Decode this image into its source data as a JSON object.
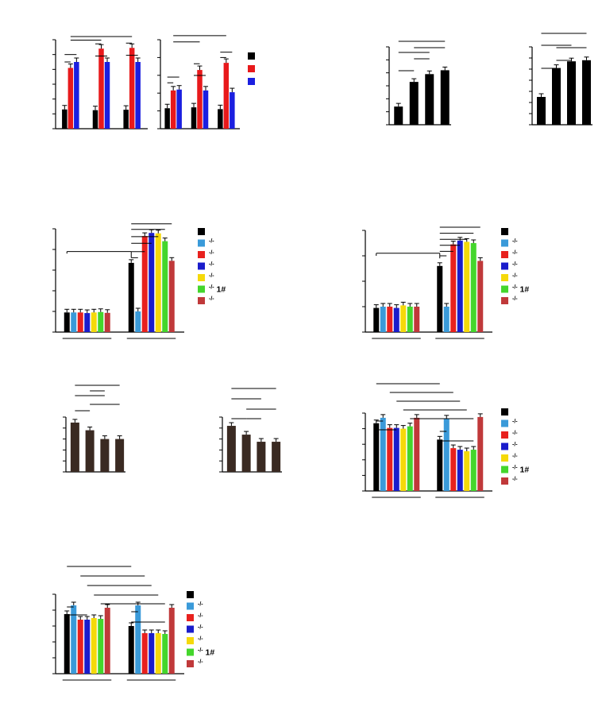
{
  "figure": {
    "colors": {
      "black": "#000000",
      "red": "#e8191b",
      "blue": "#1b1fe0",
      "skyblue": "#3a9ad9",
      "nlrp3": "#e8211e",
      "asc": "#1a1ccb",
      "yellow": "#f5d90a",
      "green": "#44d62c",
      "brick": "#c0393a",
      "dark": "#3a2a22"
    }
  },
  "chart_data": [
    {
      "id": "A",
      "type": "bar",
      "panel_label": "A",
      "title": "3D4/21",
      "ylabel": "IFN-β (pg/ml)",
      "ylim": [
        0,
        600
      ],
      "yticks": [
        0,
        100,
        200,
        300,
        400,
        500,
        600
      ],
      "categories": [
        "WT",
        "p65-/- 1#",
        "p65-/- 2#"
      ],
      "series": [
        {
          "name": "Vehicle",
          "values": [
            130,
            125,
            128
          ]
        },
        {
          "name": "G10 (20 µM)",
          "values": [
            410,
            540,
            545
          ]
        },
        {
          "name": "LPS (1 µg/ml)",
          "values": [
            450,
            450,
            450
          ]
        }
      ],
      "annotations": [
        "***",
        "***",
        "***",
        "***",
        "***",
        "***",
        "**",
        "**"
      ]
    },
    {
      "id": "A2",
      "type": "bar",
      "title": "PK15",
      "ylabel": "",
      "ylim": [
        0,
        500
      ],
      "yticks": [
        0,
        100,
        200,
        300,
        400,
        500
      ],
      "categories": [
        "WT",
        "p65-/- 1#",
        "p65-/- 2#"
      ],
      "series": [
        {
          "name": "Vehicle",
          "values": [
            115,
            120,
            110
          ]
        },
        {
          "name": "G10 (20 µM)",
          "values": [
            215,
            330,
            370
          ]
        },
        {
          "name": "LPS (1 µg/ml)",
          "values": [
            220,
            215,
            205
          ]
        }
      ],
      "legend": [
        "Vehicle",
        "G10 (20 μM)",
        "LPS (1 μg/ml)"
      ],
      "annotations": [
        "***",
        "***",
        "***",
        "***",
        "***",
        "***",
        "**",
        "**"
      ]
    },
    {
      "id": "B",
      "type": "bar",
      "panel_label": "B",
      "title": "3D4/21",
      "ylabel": "IFN-β (pg/ml)",
      "ylim": [
        0,
        600
      ],
      "yticks": [
        0,
        100,
        200,
        300,
        400,
        500,
        600
      ],
      "values": [
        140,
        330,
        390,
        420
      ],
      "rows": [
        {
          "label": "G10",
          "signs": [
            "-",
            "+",
            "+",
            "+"
          ]
        },
        {
          "label": "MCC950",
          "signs": [
            "-",
            "-",
            "+",
            "-"
          ]
        },
        {
          "label": "VX765",
          "signs": [
            "-",
            "-",
            "-",
            "+"
          ]
        }
      ],
      "annotations": [
        "***",
        "***",
        "***",
        "**",
        "*"
      ]
    },
    {
      "id": "C",
      "type": "bar",
      "panel_label": "C",
      "title": "PK15",
      "ylabel": "IFN-β (pg/ml)",
      "ylim": [
        0,
        350
      ],
      "yticks": [
        0,
        50,
        100,
        150,
        200,
        250,
        300,
        350
      ],
      "values": [
        125,
        255,
        285,
        290
      ],
      "rows": [
        {
          "label": "G10",
          "signs": [
            "-",
            "+",
            "+",
            "+"
          ]
        },
        {
          "label": "MCC950",
          "signs": [
            "-",
            "-",
            "+",
            "-"
          ]
        },
        {
          "label": "VX765",
          "signs": [
            "-",
            "-",
            "-",
            "+"
          ]
        }
      ],
      "annotations": [
        "***",
        "***",
        "***",
        "*",
        "*"
      ]
    },
    {
      "id": "D",
      "type": "bar",
      "panel_label": "D",
      "ylabel": "IFN-β (pg/ml)",
      "ylim": [
        0,
        500
      ],
      "yticks": [
        0,
        100,
        200,
        300,
        400,
        500
      ],
      "groups": [
        "Vehicle",
        "G10 (20 μM)"
      ],
      "series": [
        {
          "name": "WT",
          "values": [
            95,
            335
          ]
        },
        {
          "name": "3D4/21-Sting-/-",
          "values": [
            95,
            100
          ]
        },
        {
          "name": "3D4/21-Nlrp3-/-",
          "values": [
            95,
            465
          ]
        },
        {
          "name": "3D4/21-Asc-/-",
          "values": [
            92,
            480
          ]
        },
        {
          "name": "3D4/21-Caspase-1-/-",
          "values": [
            95,
            478
          ]
        },
        {
          "name": "3D4/21-p65-/- 1#",
          "values": [
            97,
            440
          ]
        },
        {
          "name": "3D4/21-Ifnar1-/-",
          "values": [
            93,
            345
          ]
        }
      ],
      "legend": [
        [
          "WT",
          ""
        ],
        [
          "3D4/21-",
          "Sting"
        ],
        [
          "3D4/21-",
          "Nlrp3"
        ],
        [
          "3D4/21-",
          "Asc"
        ],
        [
          "3D4/21-",
          "Caspase-1"
        ],
        [
          "3D4/21-",
          "p65"
        ],
        [
          "3D4/21-",
          "Ifnar1"
        ]
      ],
      "annotations": [
        "***",
        "***",
        "**",
        "**",
        "**",
        "**",
        "ns"
      ]
    },
    {
      "id": "E",
      "type": "bar",
      "panel_label": "E",
      "ylabel": "IFN-β (pg/ml)",
      "ylim": [
        0,
        400
      ],
      "yticks": [
        0,
        100,
        200,
        300,
        400
      ],
      "groups": [
        "Vehicle",
        "G10 (20 μM)"
      ],
      "series": [
        {
          "name": "WT",
          "values": [
            95,
            260
          ]
        },
        {
          "name": "PK15-Sting-/-",
          "values": [
            100,
            100
          ]
        },
        {
          "name": "PK15-Nlrp3-/-",
          "values": [
            100,
            345
          ]
        },
        {
          "name": "PK15-Asc-/-",
          "values": [
            95,
            360
          ]
        },
        {
          "name": "PK15-Caspase-1-/-",
          "values": [
            105,
            355
          ]
        },
        {
          "name": "PK15-p65-/- 1#",
          "values": [
            100,
            350
          ]
        },
        {
          "name": "PK15-Ifnar1-/-",
          "values": [
            100,
            280
          ]
        }
      ],
      "legend": [
        [
          "WT",
          ""
        ],
        [
          "PK15-",
          "Sting"
        ],
        [
          "PK15-",
          "Nlrp3"
        ],
        [
          "PK15-",
          "Asc"
        ],
        [
          "PK15-",
          "Caspase-1"
        ],
        [
          "PK15-",
          "p65"
        ],
        [
          "PK15-",
          "Ifnar1"
        ]
      ],
      "annotations": [
        "***",
        "***",
        "*",
        "*",
        "*",
        "*",
        "ns"
      ]
    },
    {
      "id": "F",
      "type": "bar",
      "panel_label": "F",
      "title": "3D4/21",
      "ylabel": "Log10 TCID50/0.1ml (PRV)",
      "ylim": [
        0,
        10
      ],
      "yticks": [
        0,
        2,
        4,
        6,
        8,
        10
      ],
      "values": [
        9.0,
        7.6,
        6.0,
        6.0
      ],
      "rows": [
        {
          "label": "G10",
          "signs": [
            "-",
            "+",
            "+",
            "+"
          ]
        },
        {
          "label": "MCC950",
          "signs": [
            "-",
            "-",
            "+",
            "-"
          ]
        },
        {
          "label": "VX765",
          "signs": [
            "-",
            "-",
            "-",
            "+"
          ]
        }
      ],
      "annotations": [
        "***",
        "***",
        "***",
        "**",
        "**"
      ]
    },
    {
      "id": "G",
      "type": "bar",
      "panel_label": "G",
      "title": "PK15",
      "ylabel": "Log10 TCID50/0.1ml (PRV)",
      "ylim": [
        0,
        10
      ],
      "yticks": [
        0,
        2,
        4,
        6,
        8,
        10
      ],
      "values": [
        8.4,
        6.8,
        5.5,
        5.5
      ],
      "rows": [
        {
          "label": "G10",
          "signs": [
            "-",
            "+",
            "+",
            "+"
          ]
        },
        {
          "label": "MCC950",
          "signs": [
            "-",
            "-",
            "+",
            "-"
          ]
        },
        {
          "label": "VX765",
          "signs": [
            "-",
            "-",
            "-",
            "+"
          ]
        }
      ],
      "annotations": [
        "***",
        "***",
        "***",
        "*",
        "*"
      ]
    },
    {
      "id": "H",
      "type": "bar",
      "panel_label": "H",
      "ylabel": "Log10 TCID50/0.1ml (PRV)",
      "ylim": [
        0,
        10
      ],
      "yticks": [
        0,
        2,
        4,
        6,
        8,
        10
      ],
      "groups": [
        "Vehicle",
        "G10 (20 μM)"
      ],
      "series": [
        {
          "name": "WT",
          "values": [
            8.7,
            6.6
          ]
        },
        {
          "name": "3D4/21-Sting-/-",
          "values": [
            9.4,
            9.3
          ]
        },
        {
          "name": "3D4/21-Nlrp3-/-",
          "values": [
            8.1,
            5.5
          ]
        },
        {
          "name": "3D4/21-Asc-/-",
          "values": [
            8.1,
            5.3
          ]
        },
        {
          "name": "3D4/21-Caspase-1-/-",
          "values": [
            8.0,
            5.1
          ]
        },
        {
          "name": "3D4/21-p65-/- 1#",
          "values": [
            8.3,
            5.3
          ]
        },
        {
          "name": "3D4/21-Ifnar1-/-",
          "values": [
            9.4,
            9.5
          ]
        }
      ],
      "legend": [
        [
          "WT",
          ""
        ],
        [
          "3D4/21-",
          "Sting"
        ],
        [
          "3D4/21-",
          "Nlrp3"
        ],
        [
          "3D4/21-",
          "Asc"
        ],
        [
          "3D4/21-",
          "Caspase-1"
        ],
        [
          "3D4/21-",
          "p65"
        ],
        [
          "3D4/21-",
          "Ifnar1"
        ]
      ],
      "annotations": [
        "*",
        "*",
        "**",
        "**",
        "**",
        "**",
        "**",
        "**",
        "**"
      ]
    },
    {
      "id": "I",
      "type": "bar",
      "panel_label": "I",
      "ylabel": "Log10 TCID50/0.1ml (PRV)",
      "ylim": [
        0,
        10
      ],
      "yticks": [
        0,
        2,
        4,
        6,
        8,
        10
      ],
      "groups": [
        "Vehicle",
        "G10 (20 μM)"
      ],
      "series": [
        {
          "name": "WT",
          "values": [
            7.5,
            6.0
          ]
        },
        {
          "name": "PK15-Sting-/-",
          "values": [
            8.6,
            8.6
          ]
        },
        {
          "name": "PK15-Nlrp3-/-",
          "values": [
            6.8,
            5.1
          ]
        },
        {
          "name": "PK15-Asc-/-",
          "values": [
            6.8,
            5.1
          ]
        },
        {
          "name": "PK15-Caspase-1-/-",
          "values": [
            7.0,
            5.1
          ]
        },
        {
          "name": "PK15-p65-/- 1#",
          "values": [
            6.9,
            5.0
          ]
        },
        {
          "name": "PK15-Ifnar1-/-",
          "values": [
            8.3,
            8.3
          ]
        }
      ],
      "legend": [
        [
          "WT",
          ""
        ],
        [
          "PK15-",
          "Sting"
        ],
        [
          "PK15-",
          "Nlrp3"
        ],
        [
          "PK15-",
          "Asc"
        ],
        [
          "PK15-",
          "Caspase-1"
        ],
        [
          "PK15-",
          "p65"
        ],
        [
          "PK15-",
          "Ifnar1"
        ]
      ],
      "annotations": [
        "*",
        "*",
        "**",
        "**",
        "**",
        "**",
        "**",
        "**",
        "**"
      ]
    }
  ]
}
